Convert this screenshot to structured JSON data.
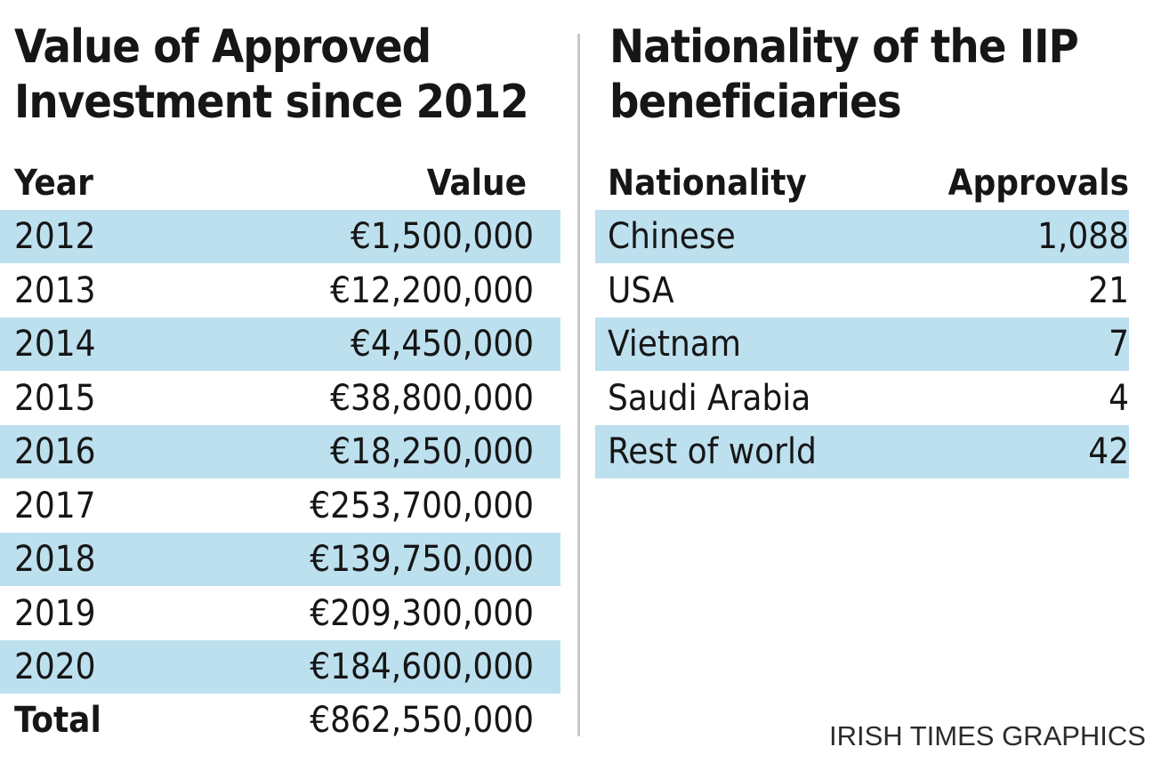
{
  "chart_data": [
    {
      "type": "table",
      "title": "Value of Approved Investment since 2012",
      "title_lines": [
        "Value of Approved",
        "Investment since 2012"
      ],
      "columns": [
        "Year",
        "Value"
      ],
      "rows": [
        {
          "year": "2012",
          "value": "€1,500,000"
        },
        {
          "year": "2013",
          "value": "€12,200,000"
        },
        {
          "year": "2014",
          "value": "€4,450,000"
        },
        {
          "year": "2015",
          "value": "€38,800,000"
        },
        {
          "year": "2016",
          "value": "€18,250,000"
        },
        {
          "year": "2017",
          "value": "€253,700,000"
        },
        {
          "year": "2018",
          "value": "€139,750,000"
        },
        {
          "year": "2019",
          "value": "€209,300,000"
        },
        {
          "year": "2020",
          "value": "€184,600,000"
        }
      ],
      "total": {
        "label": "Total",
        "value": "€862,550,000"
      }
    },
    {
      "type": "table",
      "title": "Nationality of the IIP beneficiaries",
      "title_lines": [
        "Nationality of the IIP",
        "beneficiaries"
      ],
      "columns": [
        "Nationality",
        "Approvals"
      ],
      "rows": [
        {
          "nationality": "Chinese",
          "approvals": "1,088"
        },
        {
          "nationality": "USA",
          "approvals": "21"
        },
        {
          "nationality": "Vietnam",
          "approvals": "7"
        },
        {
          "nationality": "Saudi Arabia",
          "approvals": "4"
        },
        {
          "nationality": "Rest of world",
          "approvals": "42"
        }
      ]
    }
  ],
  "credit": "IRISH TIMES GRAPHICS",
  "colors": {
    "row_shade": "#bde0ef",
    "text": "#161616",
    "divider": "#c9c9c9"
  }
}
